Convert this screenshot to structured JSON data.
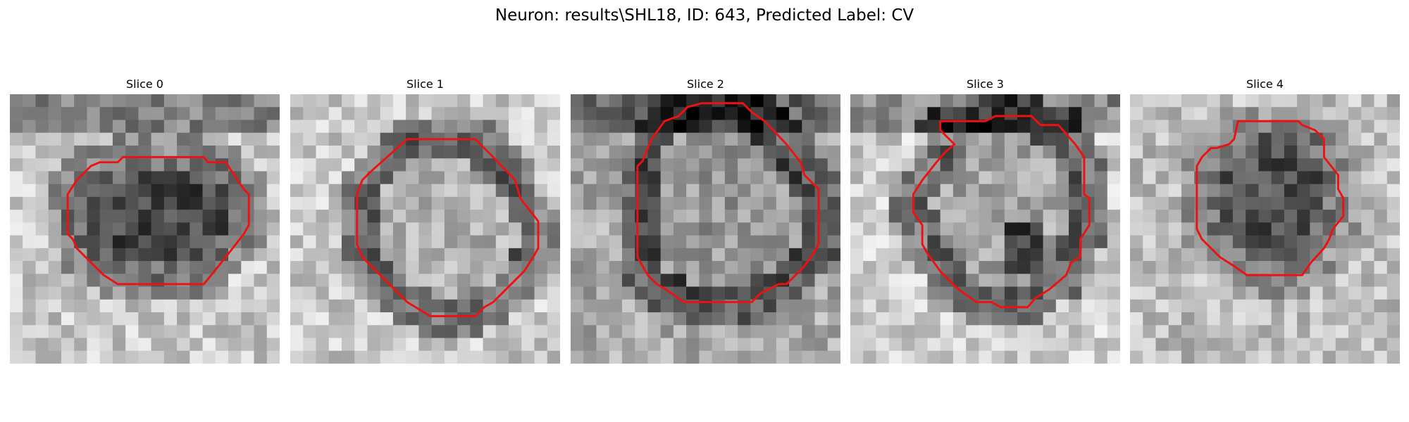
{
  "figure": {
    "title": "Neuron: results\\SHL18, ID: 643, Predicted Label: CV"
  },
  "colors": {
    "contour": "#ee1111",
    "background": "#ffffff"
  },
  "panels": [
    {
      "title": "Slice 0",
      "image": "grayscale-patch-dark-ellipse-cell",
      "contour": [
        [
          12.3,
          4.9
        ],
        [
          15.1,
          4.9
        ],
        [
          15.4,
          5.3
        ],
        [
          16.8,
          5.3
        ],
        [
          18.2,
          7.4
        ],
        [
          18.6,
          7.8
        ],
        [
          18.6,
          10.2
        ],
        [
          18.2,
          10.9
        ],
        [
          16.8,
          12.7
        ],
        [
          15.1,
          14.8
        ],
        [
          8.4,
          14.8
        ],
        [
          7.3,
          14.1
        ],
        [
          5.2,
          12.0
        ],
        [
          4.9,
          11.3
        ],
        [
          4.5,
          10.9
        ],
        [
          4.5,
          7.8
        ],
        [
          5.2,
          6.7
        ],
        [
          6.3,
          5.6
        ],
        [
          7.0,
          5.3
        ],
        [
          8.4,
          5.3
        ],
        [
          8.8,
          4.9
        ]
      ]
    },
    {
      "title": "Slice 1",
      "image": "grayscale-patch-ring-cell",
      "contour": [
        [
          9.1,
          3.5
        ],
        [
          14.4,
          3.5
        ],
        [
          15.8,
          4.9
        ],
        [
          17.5,
          6.7
        ],
        [
          17.9,
          8.1
        ],
        [
          19.3,
          9.9
        ],
        [
          19.3,
          12.0
        ],
        [
          18.9,
          12.7
        ],
        [
          18.2,
          13.8
        ],
        [
          16.8,
          15.2
        ],
        [
          15.8,
          16.2
        ],
        [
          15.1,
          16.6
        ],
        [
          14.4,
          17.3
        ],
        [
          10.9,
          17.3
        ],
        [
          9.1,
          16.2
        ],
        [
          8.1,
          15.2
        ],
        [
          6.7,
          13.8
        ],
        [
          6.3,
          13.4
        ],
        [
          5.6,
          12.7
        ],
        [
          5.2,
          11.7
        ],
        [
          5.2,
          7.8
        ],
        [
          5.6,
          6.7
        ],
        [
          6.3,
          6.0
        ]
      ]
    },
    {
      "title": "Slice 2",
      "image": "grayscale-patch-ring-cell",
      "contour": [
        [
          10.2,
          0.7
        ],
        [
          13.4,
          0.7
        ],
        [
          14.1,
          1.4
        ],
        [
          15.1,
          2.1
        ],
        [
          16.8,
          3.9
        ],
        [
          17.9,
          5.3
        ],
        [
          18.2,
          6.3
        ],
        [
          19.3,
          7.4
        ],
        [
          19.3,
          11.7
        ],
        [
          18.9,
          12.4
        ],
        [
          18.2,
          13.4
        ],
        [
          17.5,
          14.1
        ],
        [
          16.8,
          14.8
        ],
        [
          16.2,
          14.8
        ],
        [
          14.8,
          15.5
        ],
        [
          14.1,
          16.2
        ],
        [
          8.8,
          16.2
        ],
        [
          7.4,
          15.2
        ],
        [
          6.7,
          14.8
        ],
        [
          6.0,
          14.1
        ],
        [
          5.6,
          13.4
        ],
        [
          5.2,
          12.7
        ],
        [
          5.2,
          5.6
        ],
        [
          5.6,
          5.2
        ],
        [
          6.0,
          4.2
        ],
        [
          6.3,
          3.5
        ],
        [
          7.3,
          2.1
        ],
        [
          8.4,
          1.7
        ],
        [
          9.1,
          1.0
        ]
      ]
    },
    {
      "title": "Slice 3",
      "image": "grayscale-patch-irregular-cell",
      "contour": [
        [
          11.3,
          1.7
        ],
        [
          14.1,
          1.7
        ],
        [
          14.8,
          2.4
        ],
        [
          16.2,
          2.4
        ],
        [
          17.5,
          3.9
        ],
        [
          18.2,
          4.9
        ],
        [
          18.2,
          7.8
        ],
        [
          18.6,
          8.1
        ],
        [
          18.6,
          10.2
        ],
        [
          17.9,
          11.3
        ],
        [
          17.9,
          12.7
        ],
        [
          17.2,
          13.1
        ],
        [
          16.8,
          14.1
        ],
        [
          15.5,
          15.2
        ],
        [
          14.4,
          15.9
        ],
        [
          13.8,
          16.6
        ],
        [
          11.7,
          16.6
        ],
        [
          11.0,
          16.2
        ],
        [
          9.8,
          16.2
        ],
        [
          8.4,
          15.2
        ],
        [
          7.0,
          13.8
        ],
        [
          6.0,
          12.4
        ],
        [
          5.6,
          11.7
        ],
        [
          5.6,
          10.2
        ],
        [
          4.9,
          9.2
        ],
        [
          4.9,
          7.8
        ],
        [
          5.6,
          6.7
        ],
        [
          6.7,
          5.3
        ],
        [
          7.4,
          4.5
        ],
        [
          8.1,
          3.9
        ],
        [
          7.7,
          3.5
        ],
        [
          7.0,
          2.8
        ],
        [
          7.0,
          2.1
        ],
        [
          7.7,
          2.1
        ],
        [
          10.2,
          2.1
        ],
        [
          10.5,
          2.1
        ]
      ]
    },
    {
      "title": "Slice 4",
      "image": "grayscale-patch-dark-round-cell",
      "contour": [
        [
          8.4,
          2.1
        ],
        [
          13.1,
          2.1
        ],
        [
          13.4,
          2.4
        ],
        [
          14.4,
          2.8
        ],
        [
          15.1,
          3.5
        ],
        [
          15.1,
          4.9
        ],
        [
          16.2,
          6.3
        ],
        [
          16.2,
          7.4
        ],
        [
          16.6,
          8.1
        ],
        [
          16.6,
          9.5
        ],
        [
          15.8,
          10.5
        ],
        [
          15.5,
          11.3
        ],
        [
          15.1,
          12.0
        ],
        [
          14.1,
          13.1
        ],
        [
          13.4,
          14.1
        ],
        [
          9.1,
          14.1
        ],
        [
          8.1,
          13.4
        ],
        [
          7.0,
          12.7
        ],
        [
          6.0,
          11.7
        ],
        [
          5.6,
          11.3
        ],
        [
          5.2,
          10.5
        ],
        [
          5.2,
          5.6
        ],
        [
          5.6,
          4.9
        ],
        [
          6.3,
          4.2
        ],
        [
          6.7,
          4.2
        ],
        [
          7.7,
          3.9
        ],
        [
          8.1,
          3.5
        ]
      ]
    }
  ]
}
